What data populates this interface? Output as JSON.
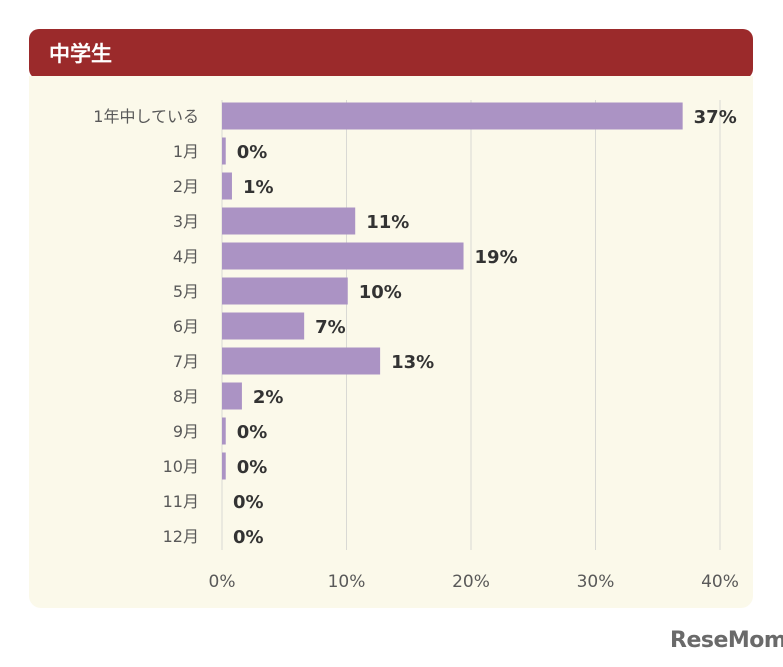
{
  "header": {
    "title": "中学生"
  },
  "logo": {
    "text": "ReseMom"
  },
  "colors": {
    "header_bg": "#9b2a2b",
    "panel_bg": "#fbf9ea",
    "bar": "#ab93c4",
    "grid": "#d9d9d4",
    "label": "#595959",
    "value_label": "#333333"
  },
  "chart_data": {
    "type": "bar",
    "orientation": "horizontal",
    "categories": [
      "1年中している",
      "1月",
      "2月",
      "3月",
      "4月",
      "5月",
      "6月",
      "7月",
      "8月",
      "9月",
      "10月",
      "11月",
      "12月"
    ],
    "values": [
      37,
      0.3,
      0.8,
      10.7,
      19.4,
      10.1,
      6.6,
      12.7,
      1.6,
      0.3,
      0.3,
      0,
      0
    ],
    "value_labels": [
      "37%",
      "0%",
      "1%",
      "11%",
      "19%",
      "10%",
      "7%",
      "13%",
      "2%",
      "0%",
      "0%",
      "0%",
      "0%"
    ],
    "xticks": [
      "0%",
      "10%",
      "20%",
      "30%",
      "40%"
    ],
    "xlim": [
      0,
      40
    ],
    "grid": true,
    "legend": "none"
  }
}
